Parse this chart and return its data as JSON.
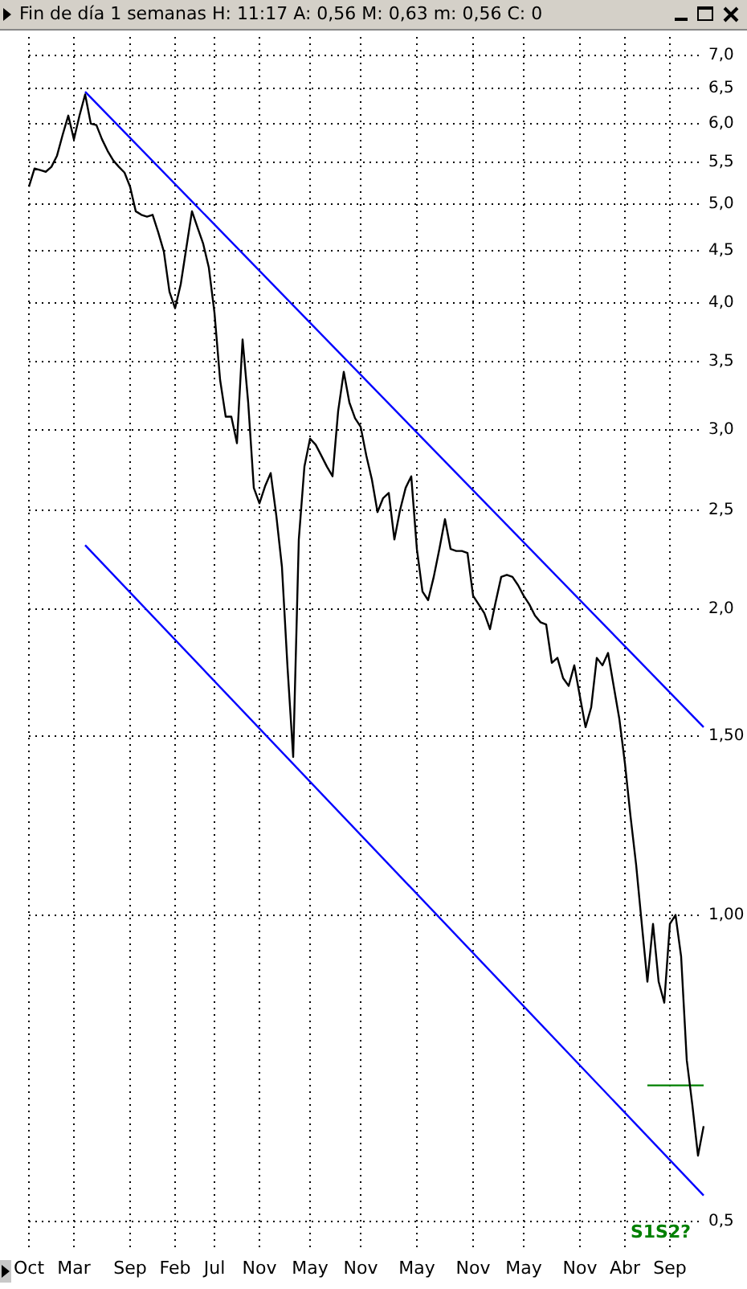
{
  "chart_data": {
    "type": "line",
    "title": "Fin de día 1 semanas  H: 11:17  A: 0,56  M: 0,63  m: 0,56  C: 0",
    "categories": [
      "Oct",
      null,
      null,
      null,
      null,
      null,
      null,
      null,
      "Mar",
      null,
      null,
      null,
      null,
      null,
      null,
      null,
      null,
      null,
      "Sep",
      null,
      null,
      null,
      null,
      null,
      null,
      null,
      "Feb",
      null,
      null,
      null,
      null,
      null,
      null,
      "Jul",
      null,
      null,
      null,
      null,
      null,
      null,
      null,
      "Nov",
      null,
      null,
      null,
      null,
      null,
      null,
      null,
      null,
      "May",
      null,
      null,
      null,
      null,
      null,
      null,
      null,
      null,
      "Nov",
      null,
      null,
      null,
      null,
      null,
      null,
      null,
      null,
      null,
      "May",
      null,
      null,
      null,
      null,
      null,
      null,
      null,
      null,
      null,
      "Nov",
      null,
      null,
      null,
      null,
      null,
      null,
      null,
      null,
      "May",
      null,
      null,
      null,
      null,
      null,
      null,
      null,
      null,
      null,
      "Nov",
      null,
      null,
      null,
      null,
      null,
      null,
      null,
      "Abr",
      null,
      null,
      null,
      null,
      null,
      null,
      null,
      "Sep",
      null,
      null,
      null,
      null,
      null,
      null
    ],
    "series": [
      {
        "type": "line",
        "color": "#000000",
        "values": [
          5.2,
          5.42,
          5.4,
          5.38,
          5.44,
          5.58,
          5.85,
          6.11,
          5.79,
          6.11,
          6.41,
          6.0,
          5.98,
          5.79,
          5.64,
          5.52,
          5.44,
          5.37,
          5.2,
          4.92,
          4.88,
          4.86,
          4.88,
          4.69,
          4.49,
          4.1,
          3.95,
          4.17,
          4.53,
          4.92,
          4.74,
          4.57,
          4.33,
          3.91,
          3.36,
          3.09,
          3.09,
          2.91,
          3.68,
          3.19,
          2.63,
          2.54,
          2.64,
          2.72,
          2.47,
          2.2,
          1.75,
          1.43,
          2.34,
          2.76,
          2.94,
          2.9,
          2.83,
          2.76,
          2.7,
          3.13,
          3.42,
          3.19,
          3.08,
          3.02,
          2.83,
          2.68,
          2.49,
          2.57,
          2.6,
          2.34,
          2.5,
          2.63,
          2.7,
          2.29,
          2.08,
          2.04,
          2.15,
          2.29,
          2.45,
          2.29,
          2.28,
          2.28,
          2.27,
          2.06,
          2.02,
          1.98,
          1.91,
          2.03,
          2.15,
          2.16,
          2.15,
          2.11,
          2.06,
          2.02,
          1.97,
          1.94,
          1.93,
          1.77,
          1.79,
          1.71,
          1.68,
          1.76,
          1.64,
          1.53,
          1.6,
          1.79,
          1.76,
          1.81,
          1.68,
          1.56,
          1.41,
          1.25,
          1.12,
          0.98,
          0.86,
          0.98,
          0.86,
          0.82,
          0.98,
          1.0,
          0.91,
          0.72,
          0.65,
          0.58,
          0.62
        ]
      },
      {
        "type": "line",
        "color": "#0000ff",
        "values": [
          null,
          null,
          null,
          null,
          null,
          null,
          null,
          null,
          null,
          null,
          6.45,
          null,
          null,
          null,
          null,
          null,
          null,
          null,
          null,
          null,
          null,
          null,
          null,
          null,
          null,
          null,
          null,
          null,
          null,
          null,
          null,
          null,
          null,
          null,
          null,
          null,
          null,
          null,
          null,
          null,
          null,
          null,
          null,
          null,
          null,
          null,
          null,
          null,
          null,
          null,
          null,
          null,
          null,
          null,
          null,
          null,
          null,
          null,
          null,
          null,
          null,
          null,
          null,
          null,
          null,
          null,
          null,
          null,
          null,
          null,
          null,
          null,
          null,
          null,
          null,
          null,
          null,
          null,
          null,
          null,
          null,
          null,
          null,
          null,
          null,
          null,
          null,
          null,
          null,
          null,
          null,
          null,
          null,
          null,
          null,
          null,
          null,
          null,
          null,
          null,
          null,
          null,
          null,
          null,
          null,
          null,
          null,
          null,
          null,
          null,
          null,
          null,
          null,
          null,
          null,
          null,
          null,
          null,
          null,
          null,
          1.53
        ]
      },
      {
        "type": "line",
        "color": "#0000ff",
        "values": [
          null,
          null,
          null,
          null,
          null,
          null,
          null,
          null,
          null,
          null,
          2.31,
          null,
          null,
          null,
          null,
          null,
          null,
          null,
          null,
          null,
          null,
          null,
          null,
          null,
          null,
          null,
          null,
          null,
          null,
          null,
          null,
          null,
          null,
          null,
          null,
          null,
          null,
          null,
          null,
          null,
          null,
          null,
          null,
          null,
          null,
          null,
          null,
          null,
          null,
          null,
          null,
          null,
          null,
          null,
          null,
          null,
          null,
          null,
          null,
          null,
          null,
          null,
          null,
          null,
          null,
          null,
          null,
          null,
          null,
          null,
          null,
          null,
          null,
          null,
          null,
          null,
          null,
          null,
          null,
          null,
          null,
          null,
          null,
          null,
          null,
          null,
          null,
          null,
          null,
          null,
          null,
          null,
          null,
          null,
          null,
          null,
          null,
          null,
          null,
          null,
          null,
          null,
          null,
          null,
          null,
          null,
          null,
          null,
          null,
          null,
          null,
          null,
          null,
          null,
          null,
          null,
          null,
          null,
          null,
          null,
          0.53
        ]
      },
      {
        "type": "line",
        "color": "#008000",
        "values": [
          null,
          null,
          null,
          null,
          null,
          null,
          null,
          null,
          null,
          null,
          null,
          null,
          null,
          null,
          null,
          null,
          null,
          null,
          null,
          null,
          null,
          null,
          null,
          null,
          null,
          null,
          null,
          null,
          null,
          null,
          null,
          null,
          null,
          null,
          null,
          null,
          null,
          null,
          null,
          null,
          null,
          null,
          null,
          null,
          null,
          null,
          null,
          null,
          null,
          null,
          null,
          null,
          null,
          null,
          null,
          null,
          null,
          null,
          null,
          null,
          null,
          null,
          null,
          null,
          null,
          null,
          null,
          null,
          null,
          null,
          null,
          null,
          null,
          null,
          null,
          null,
          null,
          null,
          null,
          null,
          null,
          null,
          null,
          null,
          null,
          null,
          null,
          null,
          null,
          null,
          null,
          null,
          null,
          null,
          null,
          null,
          null,
          null,
          null,
          null,
          null,
          null,
          null,
          null,
          null,
          null,
          null,
          null,
          null,
          null,
          0.68,
          null,
          null,
          null,
          null,
          null,
          null,
          null,
          null,
          null,
          0.68
        ]
      }
    ],
    "ylim": [
      0.47,
      7.3
    ],
    "yticks": [
      {
        "value": 0.5,
        "label": "0,5"
      },
      {
        "value": 1,
        "label": "1,00"
      },
      {
        "value": 1.5,
        "label": "1,50"
      },
      {
        "value": 2,
        "label": "2,0"
      },
      {
        "value": 2.5,
        "label": "2,5"
      },
      {
        "value": 3,
        "label": "3,0"
      },
      {
        "value": 3.5,
        "label": "3,5"
      },
      {
        "value": 4,
        "label": "4,0"
      },
      {
        "value": 4.5,
        "label": "4,5"
      },
      {
        "value": 5,
        "label": "5,0"
      },
      {
        "value": 5.5,
        "label": "5,5"
      },
      {
        "value": 6,
        "label": "6,0"
      },
      {
        "value": 6.5,
        "label": "6,5"
      },
      {
        "value": 7,
        "label": "7,0"
      }
    ],
    "log": "y",
    "grid": true,
    "legend": false,
    "marker": "none",
    "line_style": "solid",
    "annotations": [
      "S1S2?"
    ]
  }
}
